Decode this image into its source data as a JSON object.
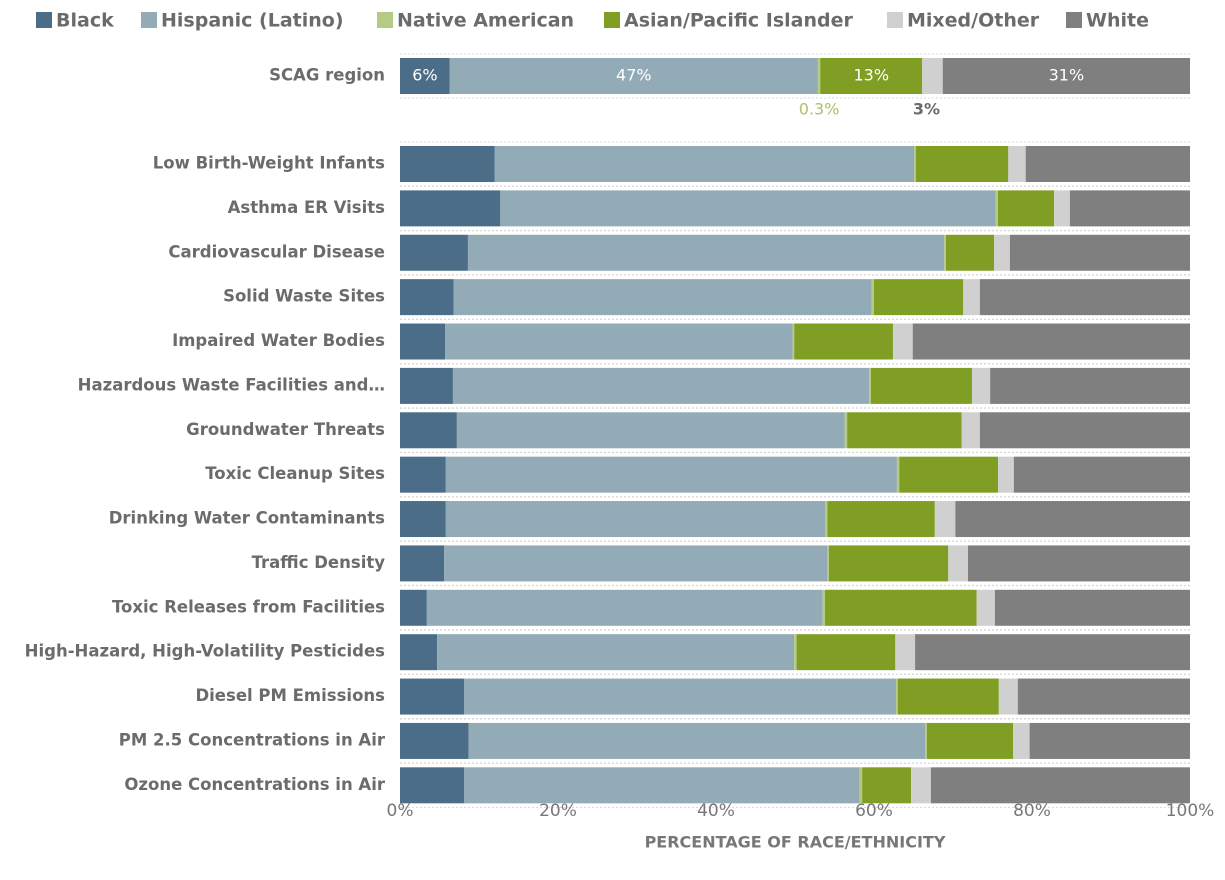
{
  "chart_data": {
    "type": "stacked_barh",
    "x_axis_label": "PERCENTAGE OF RACE/ETHNICITY",
    "categories": [
      "SCAG region",
      "Low Birth-Weight Infants",
      "Asthma ER Visits",
      "Cardiovascular Disease",
      "Solid Waste Sites",
      "Impaired Water Bodies",
      "Hazardous Waste Facilities and…",
      "Groundwater Threats",
      "Toxic Cleanup Sites",
      "Drinking Water Contaminants",
      "Traffic Density",
      "Toxic Releases from Facilities",
      "High-Hazard, High-Volatility Pesticides",
      "Diesel PM Emissions",
      "PM 2.5 Concentrations in Air",
      "Ozone Concentrations in Air"
    ],
    "series": [
      {
        "name": "Black",
        "color": "#4b6d87",
        "values": [
          6.3,
          12.0,
          12.7,
          8.6,
          6.8,
          5.7,
          6.7,
          7.2,
          5.8,
          5.8,
          5.6,
          3.4,
          4.7,
          8.1,
          8.7,
          8.1
        ],
        "value_labels": [
          "6%",
          null,
          null,
          null,
          null,
          null,
          null,
          null,
          null,
          null,
          null,
          null,
          null,
          null,
          null,
          null
        ]
      },
      {
        "name": "Hispanic (Latino)",
        "color": "#93aab7",
        "values": [
          46.6,
          53.1,
          62.7,
          60.3,
          52.9,
          44.0,
          52.7,
          49.1,
          57.1,
          48.0,
          48.5,
          50.1,
          45.2,
          54.7,
          57.8,
          50.1
        ],
        "value_labels": [
          "47%",
          null,
          null,
          null,
          null,
          null,
          null,
          null,
          null,
          null,
          null,
          null,
          null,
          null,
          null,
          null
        ]
      },
      {
        "name": "Native American",
        "color": "#b5ca82",
        "values": [
          0.3,
          0.2,
          0.3,
          0.2,
          0.3,
          0.2,
          0.2,
          0.3,
          0.3,
          0.3,
          0.2,
          0.3,
          0.3,
          0.2,
          0.2,
          0.3
        ],
        "value_labels": [
          "0.3%",
          null,
          null,
          null,
          null,
          null,
          null,
          null,
          null,
          null,
          null,
          null,
          null,
          null,
          null,
          null
        ]
      },
      {
        "name": "Asian/Pacific Islander",
        "color": "#7f9e23",
        "values": [
          12.9,
          11.7,
          7.1,
          6.1,
          11.3,
          12.5,
          12.8,
          14.5,
          12.5,
          13.6,
          15.1,
          19.2,
          12.5,
          12.8,
          10.9,
          6.2
        ],
        "value_labels": [
          "13%",
          null,
          null,
          null,
          null,
          null,
          null,
          null,
          null,
          null,
          null,
          null,
          null,
          null,
          null,
          null
        ]
      },
      {
        "name": "Mixed/Other",
        "color": "#d0d0d0",
        "values": [
          2.6,
          2.2,
          2.0,
          2.0,
          2.1,
          2.5,
          2.3,
          2.3,
          2.0,
          2.6,
          2.5,
          2.3,
          2.5,
          2.4,
          2.1,
          2.5
        ],
        "value_labels": [
          "3%",
          null,
          null,
          null,
          null,
          null,
          null,
          null,
          null,
          null,
          null,
          null,
          null,
          null,
          null,
          null
        ]
      },
      {
        "name": "White",
        "color": "#7f7f7f",
        "values": [
          31.3,
          20.8,
          15.2,
          22.8,
          26.6,
          35.1,
          25.3,
          26.6,
          22.3,
          29.7,
          28.1,
          24.7,
          34.8,
          21.8,
          20.3,
          32.8
        ],
        "value_labels": [
          "31%",
          null,
          null,
          null,
          null,
          null,
          null,
          null,
          null,
          null,
          null,
          null,
          null,
          null,
          null,
          null
        ]
      }
    ],
    "xlim": [
      0,
      100
    ],
    "xticks": [
      {
        "value": 0,
        "label": "0%"
      },
      {
        "value": 20,
        "label": "20%"
      },
      {
        "value": 40,
        "label": "40%"
      },
      {
        "value": 60,
        "label": "60%"
      },
      {
        "value": 80,
        "label": "80%"
      },
      {
        "value": 100,
        "label": "100%"
      }
    ],
    "legend": "top"
  }
}
